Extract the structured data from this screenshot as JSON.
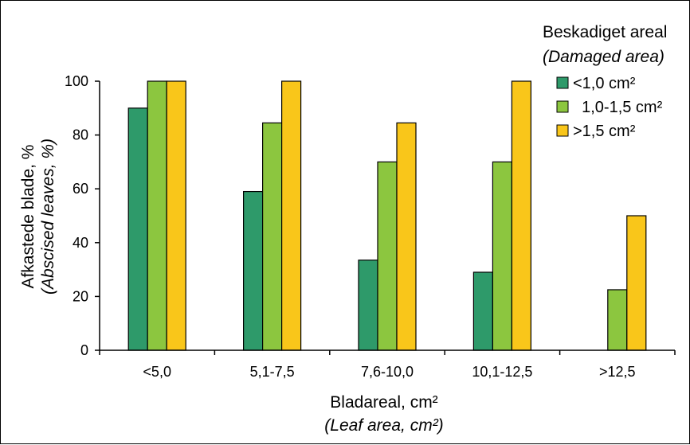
{
  "chart_data": {
    "type": "bar",
    "categories": [
      "<5,0",
      "5,1-7,5",
      "7,6-10,0",
      "10,1-12,5",
      ">12,5"
    ],
    "series": [
      {
        "name": "<1,0 cm²",
        "values": [
          90,
          59,
          33.5,
          29,
          null
        ],
        "color": "#2e9a6a"
      },
      {
        "name": "  1,0-1,5 cm²",
        "values": [
          100,
          84.5,
          70,
          70,
          22.5
        ],
        "color": "#8cc63f"
      },
      {
        "name": ">1,5 cm²",
        "values": [
          100,
          100,
          84.5,
          100,
          50
        ],
        "color": "#f9c61a"
      }
    ],
    "ylim": [
      0,
      100
    ],
    "yticks": [
      "0",
      "20",
      "40",
      "60",
      "80",
      "100"
    ],
    "xlabel": "Bladareal, cm²",
    "xlabel_sub": "(Leaf area, cm²)",
    "ylabel": "Afkastede blade, %",
    "ylabel_sub": "(Abscised leaves, %)",
    "legend_title": "Beskadiget areal",
    "legend_subtitle": "(Damaged area)",
    "legend_position": "top-right",
    "grid": false
  }
}
